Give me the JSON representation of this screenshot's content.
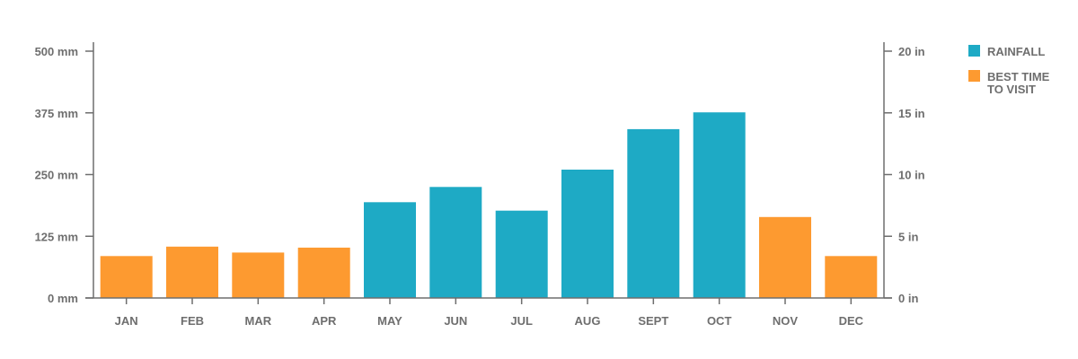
{
  "chart_data": {
    "type": "bar",
    "categories": [
      "JAN",
      "FEB",
      "MAR",
      "APR",
      "MAY",
      "JUN",
      "JUL",
      "AUG",
      "SEPT",
      "OCT",
      "NOV",
      "DEC"
    ],
    "values": [
      85,
      104,
      92,
      102,
      194,
      225,
      177,
      260,
      342,
      376,
      164,
      85
    ],
    "bar_groups": [
      "best",
      "best",
      "best",
      "best",
      "rainfall",
      "rainfall",
      "rainfall",
      "rainfall",
      "rainfall",
      "rainfall",
      "best",
      "best"
    ],
    "left_axis": {
      "unit": "mm",
      "ylim": [
        0,
        500
      ],
      "ticks": [
        0,
        125,
        250,
        375,
        500
      ],
      "tick_labels": [
        "0 mm",
        "125 mm",
        "250 mm",
        "375 mm",
        "500 mm"
      ]
    },
    "right_axis": {
      "unit": "in",
      "ylim": [
        0,
        20
      ],
      "ticks": [
        0,
        5,
        10,
        15,
        20
      ],
      "tick_labels": [
        "0 in",
        "5 in",
        "10 in",
        "15 in",
        "20 in"
      ]
    },
    "grid": false,
    "legend": {
      "position": "right",
      "entries": [
        {
          "key": "rainfall",
          "label_lines": [
            "RAINFALL"
          ],
          "color": "#1eaac5"
        },
        {
          "key": "best",
          "label_lines": [
            "BEST TIME",
            "TO VISIT"
          ],
          "color": "#fd9a30"
        }
      ]
    }
  },
  "colors": {
    "rainfall": "#1eaac5",
    "best": "#fd9a30",
    "axis": "#6e6e6e"
  }
}
